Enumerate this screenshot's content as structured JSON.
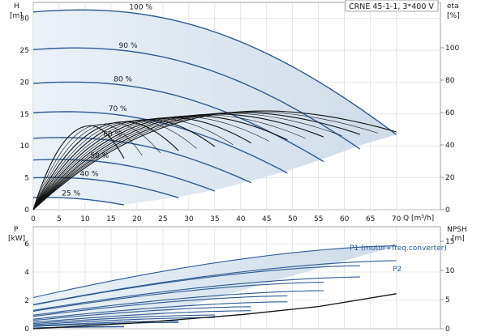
{
  "chart_data": [
    {
      "type": "line",
      "title": "CRNE 45-1-1, 3*400 V",
      "ylabel_left": "H",
      "ylabel_left_unit": "[m]",
      "ylabel_right": "eta",
      "ylabel_right_unit": "[%]",
      "xlabel": "Q [m³/h]",
      "xlim": [
        0,
        70
      ],
      "ylim": [
        0,
        32
      ],
      "x_ticks": [
        "0",
        "5",
        "10",
        "15",
        "20",
        "25",
        "30",
        "35",
        "40",
        "45",
        "50",
        "55",
        "60",
        "65",
        "70"
      ],
      "y_ticks": [
        "0",
        "5",
        "10",
        "15",
        "20",
        "25",
        "30"
      ],
      "y2_ticks": [
        "0",
        "20",
        "40",
        "60",
        "80",
        "100"
      ],
      "grid": true,
      "speed_curves": [
        {
          "name": "100 %",
          "h0": 31.0,
          "q_max": 70.0,
          "h_end": 12.5
        },
        {
          "name": "90 %",
          "h0": 25.1,
          "q_max": 63.0,
          "h_end": 10.1
        },
        {
          "name": "80 %",
          "h0": 19.8,
          "q_max": 56.0,
          "h_end": 8.0
        },
        {
          "name": "70 %",
          "h0": 15.2,
          "q_max": 49.0,
          "h_end": 6.1
        },
        {
          "name": "60 %",
          "h0": 11.2,
          "q_max": 42.0,
          "h_end": 4.5
        },
        {
          "name": "50 %",
          "h0": 7.8,
          "q_max": 35.0,
          "h_end": 3.1
        },
        {
          "name": "40 %",
          "h0": 5.0,
          "q_max": 28.0,
          "h_end": 2.0
        },
        {
          "name": "25 %",
          "h0": 1.9,
          "q_max": 17.5,
          "h_end": 0.8
        }
      ],
      "efficiency_100": {
        "peak_q": 45.0,
        "peak_eta": 61.0,
        "q_max": 70.0,
        "eta_end": 48.0
      }
    },
    {
      "type": "line",
      "ylabel_left": "P",
      "ylabel_left_unit": "[kW]",
      "ylabel_right": "NPSH",
      "ylabel_right_unit": "[m]",
      "xlim": [
        0,
        70
      ],
      "ylim": [
        0,
        7
      ],
      "y_ticks": [
        "0",
        "2",
        "4",
        "6"
      ],
      "y2_ticks": [
        "0",
        "5",
        "10",
        "15"
      ],
      "grid": true,
      "series": [
        {
          "name": "P1 (motor+freq.converter)",
          "p0": 2.2,
          "p_end": 5.85
        },
        {
          "name": "P2",
          "p0": 1.7,
          "p_end": 4.8
        }
      ],
      "npsh": {
        "x": [
          0,
          20,
          40,
          55,
          70
        ],
        "y": [
          0,
          1.0,
          2.4,
          3.8,
          6.0
        ]
      }
    }
  ]
}
